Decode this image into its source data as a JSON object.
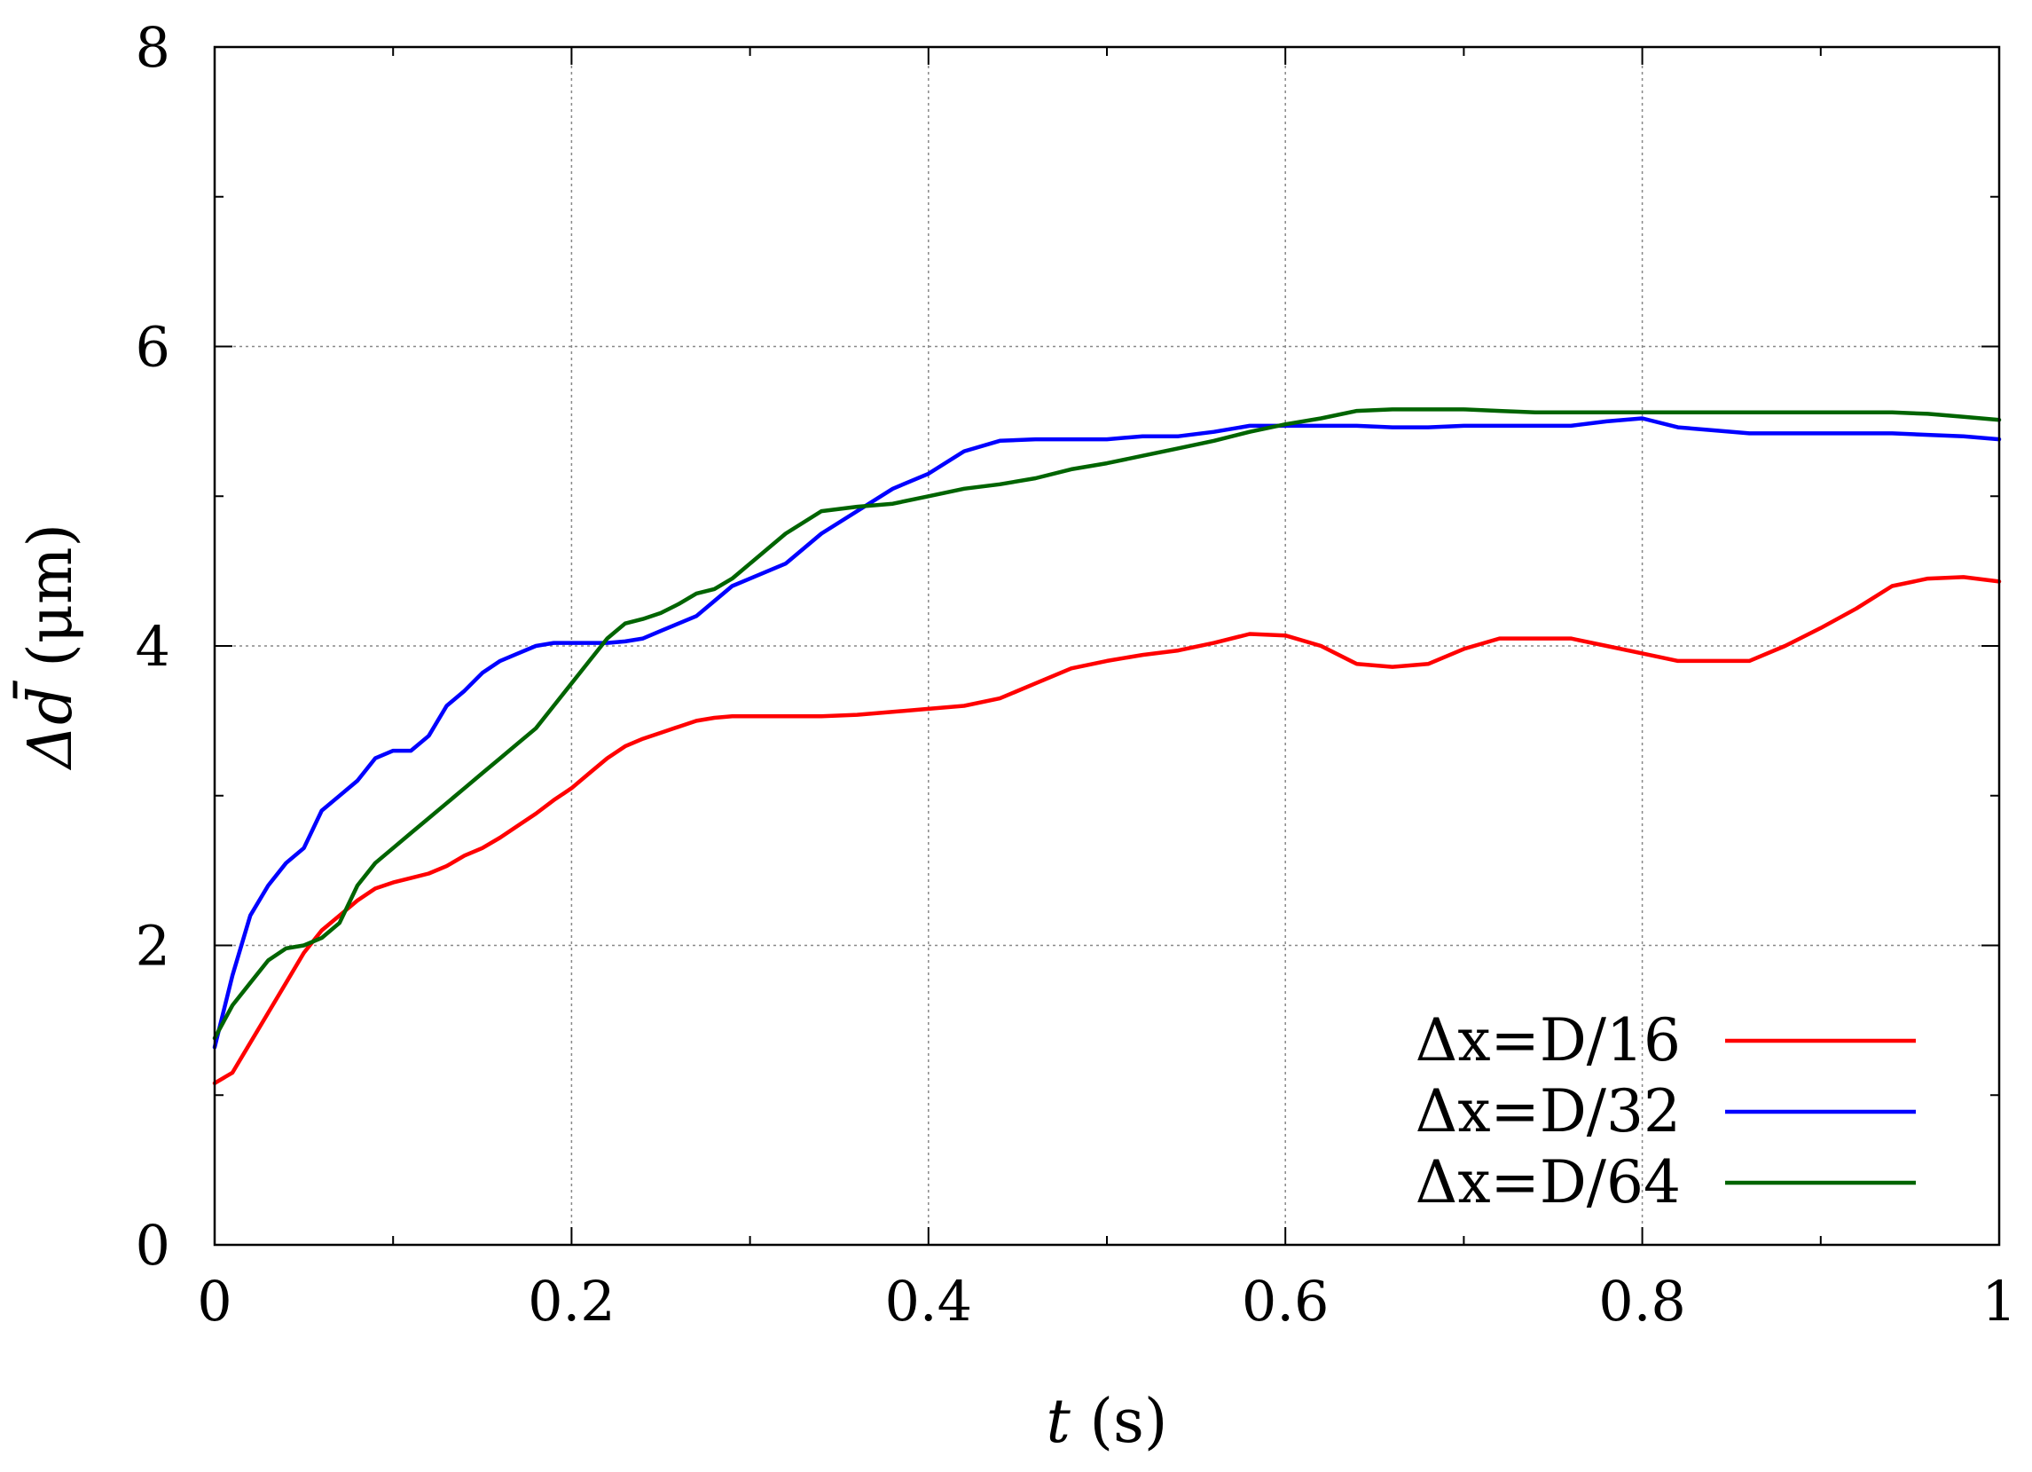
{
  "chart_data": {
    "type": "line",
    "title": "",
    "xlabel": {
      "var": "t",
      "unit": " (s)"
    },
    "ylabel": {
      "var": "Δd̄",
      "unit": " (μm)"
    },
    "xlim": [
      0,
      1
    ],
    "ylim": [
      0,
      8
    ],
    "xticks": [
      0,
      0.2,
      0.4,
      0.6,
      0.8,
      1
    ],
    "xtick_labels": [
      "0",
      "0.2",
      "0.4",
      "0.6",
      "0.8",
      "1"
    ],
    "yticks": [
      0,
      2,
      4,
      6,
      8
    ],
    "ytick_labels": [
      "0",
      "2",
      "4",
      "6",
      "8"
    ],
    "grid": true,
    "legend_position": "bottom-right",
    "series": [
      {
        "name": "Δx=D/16",
        "color": "#ff0000",
        "x": [
          0,
          0.01,
          0.02,
          0.03,
          0.04,
          0.05,
          0.06,
          0.07,
          0.08,
          0.09,
          0.1,
          0.11,
          0.12,
          0.13,
          0.14,
          0.15,
          0.16,
          0.17,
          0.18,
          0.19,
          0.2,
          0.21,
          0.22,
          0.23,
          0.24,
          0.25,
          0.26,
          0.27,
          0.28,
          0.29,
          0.3,
          0.32,
          0.34,
          0.36,
          0.38,
          0.4,
          0.42,
          0.44,
          0.46,
          0.48,
          0.5,
          0.52,
          0.54,
          0.56,
          0.58,
          0.6,
          0.62,
          0.64,
          0.66,
          0.68,
          0.7,
          0.72,
          0.74,
          0.76,
          0.78,
          0.8,
          0.82,
          0.84,
          0.86,
          0.88,
          0.9,
          0.92,
          0.94,
          0.96,
          0.98,
          1.0
        ],
        "y": [
          1.08,
          1.15,
          1.35,
          1.55,
          1.75,
          1.95,
          2.1,
          2.2,
          2.3,
          2.38,
          2.42,
          2.45,
          2.48,
          2.53,
          2.6,
          2.65,
          2.72,
          2.8,
          2.88,
          2.97,
          3.05,
          3.15,
          3.25,
          3.33,
          3.38,
          3.42,
          3.46,
          3.5,
          3.52,
          3.53,
          3.53,
          3.53,
          3.53,
          3.54,
          3.56,
          3.58,
          3.6,
          3.65,
          3.75,
          3.85,
          3.9,
          3.94,
          3.97,
          4.02,
          4.08,
          4.07,
          4.0,
          3.88,
          3.86,
          3.88,
          3.98,
          4.05,
          4.05,
          4.05,
          4.0,
          3.95,
          3.9,
          3.9,
          3.9,
          4.0,
          4.12,
          4.25,
          4.4,
          4.45,
          4.46,
          4.43
        ]
      },
      {
        "name": "Δx=D/32",
        "color": "#0000ff",
        "x": [
          0,
          0.01,
          0.02,
          0.03,
          0.04,
          0.05,
          0.06,
          0.07,
          0.08,
          0.09,
          0.1,
          0.11,
          0.12,
          0.13,
          0.14,
          0.15,
          0.16,
          0.17,
          0.18,
          0.19,
          0.2,
          0.21,
          0.22,
          0.23,
          0.24,
          0.25,
          0.26,
          0.27,
          0.28,
          0.29,
          0.3,
          0.32,
          0.34,
          0.36,
          0.38,
          0.4,
          0.42,
          0.44,
          0.46,
          0.48,
          0.5,
          0.52,
          0.54,
          0.56,
          0.58,
          0.6,
          0.62,
          0.64,
          0.66,
          0.68,
          0.7,
          0.72,
          0.74,
          0.76,
          0.78,
          0.8,
          0.82,
          0.84,
          0.86,
          0.88,
          0.9,
          0.92,
          0.94,
          0.96,
          0.98,
          1.0
        ],
        "y": [
          1.32,
          1.8,
          2.2,
          2.4,
          2.55,
          2.65,
          2.9,
          3.0,
          3.1,
          3.25,
          3.3,
          3.3,
          3.4,
          3.6,
          3.7,
          3.82,
          3.9,
          3.95,
          4.0,
          4.02,
          4.02,
          4.02,
          4.02,
          4.03,
          4.05,
          4.1,
          4.15,
          4.2,
          4.3,
          4.4,
          4.45,
          4.55,
          4.75,
          4.9,
          5.05,
          5.15,
          5.3,
          5.37,
          5.38,
          5.38,
          5.38,
          5.4,
          5.4,
          5.43,
          5.47,
          5.47,
          5.47,
          5.47,
          5.46,
          5.46,
          5.47,
          5.47,
          5.47,
          5.47,
          5.5,
          5.52,
          5.46,
          5.44,
          5.42,
          5.42,
          5.42,
          5.42,
          5.42,
          5.41,
          5.4,
          5.38
        ]
      },
      {
        "name": "Δx=D/64",
        "color": "#006400",
        "x": [
          0,
          0.01,
          0.02,
          0.03,
          0.04,
          0.05,
          0.06,
          0.07,
          0.08,
          0.09,
          0.1,
          0.11,
          0.12,
          0.13,
          0.14,
          0.15,
          0.16,
          0.17,
          0.18,
          0.19,
          0.2,
          0.21,
          0.22,
          0.23,
          0.24,
          0.25,
          0.26,
          0.27,
          0.28,
          0.29,
          0.3,
          0.32,
          0.34,
          0.36,
          0.38,
          0.4,
          0.42,
          0.44,
          0.46,
          0.48,
          0.5,
          0.52,
          0.54,
          0.56,
          0.58,
          0.6,
          0.62,
          0.64,
          0.66,
          0.68,
          0.7,
          0.72,
          0.74,
          0.76,
          0.78,
          0.8,
          0.82,
          0.84,
          0.86,
          0.88,
          0.9,
          0.92,
          0.94,
          0.96,
          0.98,
          1.0
        ],
        "y": [
          1.38,
          1.6,
          1.75,
          1.9,
          1.98,
          2.0,
          2.05,
          2.15,
          2.4,
          2.55,
          2.65,
          2.75,
          2.85,
          2.95,
          3.05,
          3.15,
          3.25,
          3.35,
          3.45,
          3.6,
          3.75,
          3.9,
          4.05,
          4.15,
          4.18,
          4.22,
          4.28,
          4.35,
          4.38,
          4.45,
          4.55,
          4.75,
          4.9,
          4.93,
          4.95,
          5.0,
          5.05,
          5.08,
          5.12,
          5.18,
          5.22,
          5.27,
          5.32,
          5.37,
          5.43,
          5.48,
          5.52,
          5.57,
          5.58,
          5.58,
          5.58,
          5.57,
          5.56,
          5.56,
          5.56,
          5.56,
          5.56,
          5.56,
          5.56,
          5.56,
          5.56,
          5.56,
          5.56,
          5.55,
          5.53,
          5.51
        ]
      }
    ]
  }
}
